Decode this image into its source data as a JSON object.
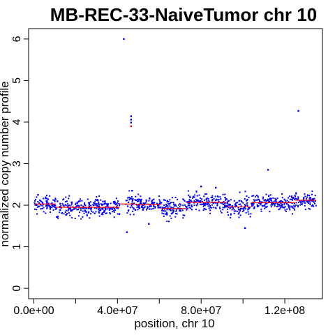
{
  "chart_data": {
    "type": "scatter",
    "title": "MB-REC-33-NaiveTumor chr 10",
    "xlabel": "position, chr 10",
    "ylabel": "normalized copy number profile",
    "xlim": [
      -2500000,
      138000000
    ],
    "ylim": [
      -0.25,
      6.25
    ],
    "x_ticks": [
      0,
      20000000,
      40000000,
      60000000,
      80000000,
      100000000,
      120000000
    ],
    "x_tick_labels": [
      "0.0e+00",
      "",
      "4.0e+07",
      "",
      "8.0e+07",
      "",
      "1.2e+08"
    ],
    "y_ticks": [
      0,
      1,
      2,
      3,
      4,
      5,
      6
    ],
    "y_tick_labels": [
      "0",
      "1",
      "2",
      "3",
      "4",
      "5",
      "6"
    ],
    "grid": false,
    "legend": "none",
    "colors": {
      "points": "#0000ff",
      "segments": "#ff0000",
      "frame": "#000000"
    },
    "segments": [
      {
        "x_start": 200000,
        "x_end": 10500000,
        "value": 2.03
      },
      {
        "x_start": 10500000,
        "x_end": 41000000,
        "value": 1.95
      },
      {
        "x_start": 41000000,
        "x_end": 48500000,
        "value": 2.03
      },
      {
        "x_start": 48500000,
        "x_end": 61000000,
        "value": 2.02
      },
      {
        "x_start": 61000000,
        "x_end": 73000000,
        "value": 1.92
      },
      {
        "x_start": 73000000,
        "x_end": 92000000,
        "value": 2.07
      },
      {
        "x_start": 92000000,
        "x_end": 104000000,
        "value": 1.96
      },
      {
        "x_start": 104000000,
        "x_end": 125000000,
        "value": 2.06
      },
      {
        "x_start": 125000000,
        "x_end": 135000000,
        "value": 2.12
      }
    ],
    "bins": [
      {
        "x_start": 200000,
        "x_end": 10500000,
        "mean": 2.03,
        "spread": 0.09
      },
      {
        "x_start": 10500000,
        "x_end": 41000000,
        "mean": 1.95,
        "spread": 0.11
      },
      {
        "x_start": 44000000,
        "x_end": 48500000,
        "mean": 2.03,
        "spread": 0.12
      },
      {
        "x_start": 48500000,
        "x_end": 61000000,
        "mean": 2.03,
        "spread": 0.09
      },
      {
        "x_start": 61000000,
        "x_end": 73000000,
        "mean": 1.92,
        "spread": 0.13
      },
      {
        "x_start": 73000000,
        "x_end": 92000000,
        "mean": 2.08,
        "spread": 0.11
      },
      {
        "x_start": 92000000,
        "x_end": 104000000,
        "mean": 1.96,
        "spread": 0.13
      },
      {
        "x_start": 104000000,
        "x_end": 125000000,
        "mean": 2.06,
        "spread": 0.09
      },
      {
        "x_start": 125000000,
        "x_end": 135000000,
        "mean": 2.1,
        "spread": 0.09
      }
    ],
    "outliers": [
      {
        "x": 43000000,
        "y": 6.0
      },
      {
        "x": 46500000,
        "y": 4.14
      },
      {
        "x": 46500000,
        "y": 4.06
      },
      {
        "x": 46500000,
        "y": 3.99
      },
      {
        "x": 46500000,
        "y": 3.9,
        "color": "#ff0000"
      },
      {
        "x": 44500000,
        "y": 1.35
      },
      {
        "x": 112000000,
        "y": 2.85
      },
      {
        "x": 126500000,
        "y": 4.27
      },
      {
        "x": 47000000,
        "y": 2.35
      },
      {
        "x": 80000000,
        "y": 2.45
      },
      {
        "x": 87000000,
        "y": 2.42
      },
      {
        "x": 101000000,
        "y": 1.45
      },
      {
        "x": 55000000,
        "y": 1.55
      },
      {
        "x": 2000000,
        "y": 2.25
      }
    ]
  }
}
